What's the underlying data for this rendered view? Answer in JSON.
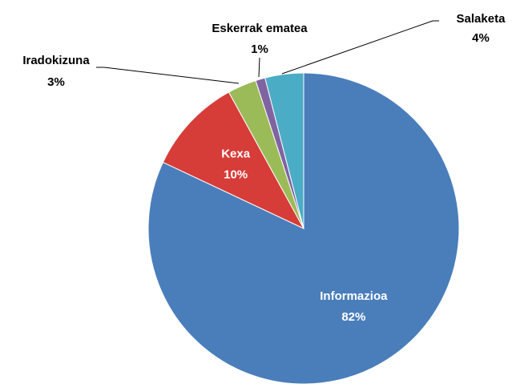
{
  "chart_data": {
    "type": "pie",
    "categories": [
      "Informazioa",
      "Kexa",
      "Iradokizuna",
      "Eskerrak ematea",
      "Salaketa"
    ],
    "values": [
      82,
      10,
      3,
      1,
      4
    ],
    "value_labels": [
      "82%",
      "10%",
      "3%",
      "1%",
      "4%"
    ],
    "colors": [
      "#4a7ebb",
      "#d63c38",
      "#9bbb59",
      "#8064a2",
      "#4bacc6"
    ]
  }
}
